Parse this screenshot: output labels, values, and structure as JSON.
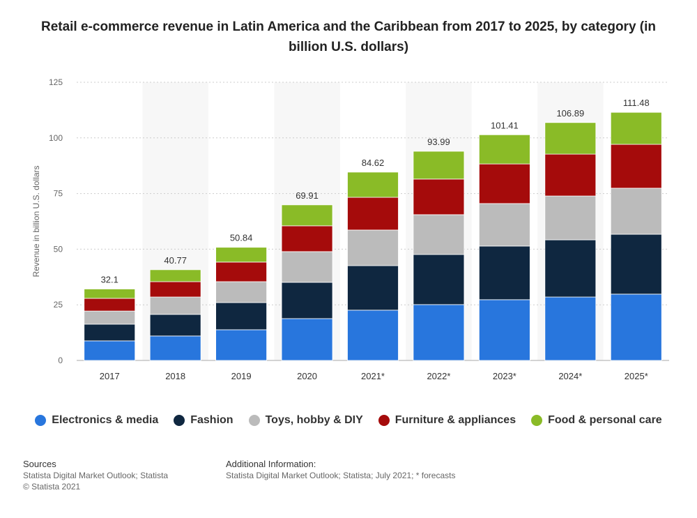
{
  "chart_data": {
    "type": "bar",
    "stacked": true,
    "title": "Retail e-commerce revenue in Latin America and the Caribbean from 2017 to 2025, by category (in billion U.S. dollars)",
    "xlabel": "",
    "ylabel": "Revenue in billion U.S. dollars",
    "ylim": [
      0,
      125
    ],
    "yticks": [
      0,
      25,
      50,
      75,
      100,
      125
    ],
    "grid": true,
    "legend_position": "bottom",
    "categories": [
      "2017",
      "2018",
      "2019",
      "2020",
      "2021*",
      "2022*",
      "2023*",
      "2024*",
      "2025*"
    ],
    "totals": [
      "32.1",
      "40.77",
      "50.84",
      "69.91",
      "84.62",
      "93.99",
      "101.41",
      "106.89",
      "111.48"
    ],
    "series": [
      {
        "name": "Electronics & media",
        "color": "#2876dd",
        "values": [
          8.8,
          11.0,
          13.8,
          18.8,
          22.6,
          25.1,
          27.3,
          28.5,
          29.8
        ]
      },
      {
        "name": "Fashion",
        "color": "#0f2740",
        "values": [
          7.5,
          9.7,
          12.2,
          16.3,
          20.0,
          22.5,
          24.1,
          25.7,
          26.9
        ]
      },
      {
        "name": "Toys, hobby & DIY",
        "color": "#bbbbbb",
        "values": [
          5.9,
          7.8,
          9.4,
          13.8,
          16.0,
          17.9,
          19.1,
          19.7,
          20.7
        ]
      },
      {
        "name": "Furniture & appliances",
        "color": "#a50b0b",
        "values": [
          5.7,
          6.9,
          8.8,
          11.6,
          14.7,
          16.0,
          17.8,
          18.8,
          19.7
        ]
      },
      {
        "name": "Food & personal care",
        "color": "#8abb27",
        "values": [
          4.2,
          5.37,
          6.64,
          9.41,
          11.32,
          12.49,
          13.11,
          14.19,
          14.38
        ]
      }
    ]
  },
  "footer": {
    "sources_label": "Sources",
    "sources_text": "Statista Digital Market Outlook; Statista",
    "copyright": "© Statista 2021",
    "info_label": "Additional Information:",
    "info_text": "Statista Digital Market Outlook; Statista; July 2021; * forecasts"
  }
}
